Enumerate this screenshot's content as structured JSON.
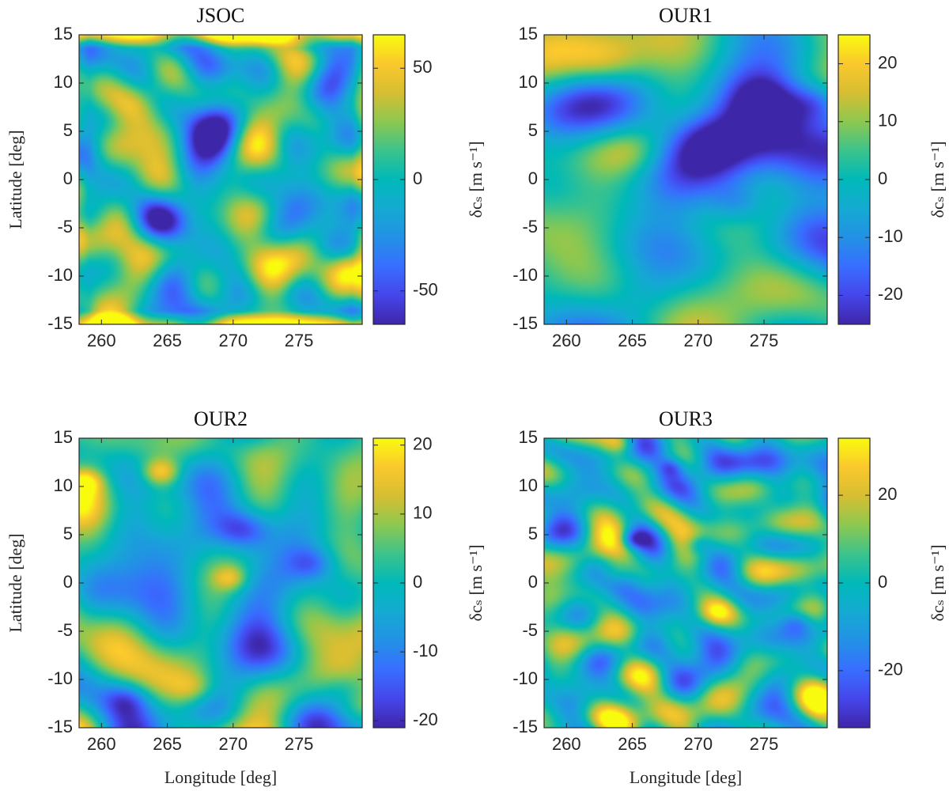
{
  "chart_data": [
    {
      "type": "heatmap",
      "title": "JSOC",
      "xlabel": "",
      "ylabel": "Latitude [deg]",
      "colorbar_label": "δcₛ [m s⁻¹]",
      "xlim": [
        258.3,
        279.8
      ],
      "ylim": [
        -15,
        15
      ],
      "xticks": [
        "260",
        "265",
        "270",
        "275"
      ],
      "yticks": [
        "15",
        "10",
        "5",
        "0",
        "-5",
        "-10",
        "-15"
      ],
      "clim": [
        -65,
        65
      ],
      "cbar_ticks": [
        "50",
        "0",
        "-50"
      ],
      "cbar_tick_values": [
        50,
        0,
        -50
      ],
      "pattern": "fine-scale noise, strong positive band at latitude ±14–15 edges",
      "seed": 11,
      "features": [
        {
          "lon": 262.0,
          "lat": 8.0,
          "amp": 0.5,
          "r": 1.5
        },
        {
          "lon": 273.5,
          "lat": -8.0,
          "amp": 0.6,
          "r": 1.8
        },
        {
          "lon": 259.0,
          "lat": -6.0,
          "amp": 0.6,
          "r": 1.6
        },
        {
          "lon": 279.0,
          "lat": -9.0,
          "amp": 0.7,
          "r": 1.2
        },
        {
          "lon": 265.0,
          "lat": -9.0,
          "amp": -0.55,
          "r": 1.5
        },
        {
          "lon": 270.0,
          "lat": 2.0,
          "amp": -0.4,
          "r": 2.0
        }
      ]
    },
    {
      "type": "heatmap",
      "title": "OUR1",
      "xlabel": "",
      "ylabel": "",
      "colorbar_label": "δcₛ [m s⁻¹]",
      "xlim": [
        258.3,
        279.8
      ],
      "ylim": [
        -15,
        15
      ],
      "xticks": [
        "260",
        "265",
        "270",
        "275"
      ],
      "yticks": [
        "15",
        "10",
        "5",
        "0",
        "-5",
        "-10",
        "-15"
      ],
      "clim": [
        -25,
        25
      ],
      "cbar_ticks": [
        "20",
        "10",
        "0",
        "-10",
        "-20"
      ],
      "cbar_tick_values": [
        20,
        10,
        0,
        -10,
        -20
      ],
      "pattern": "smooth; positive on west side (lat ~3, lon 259–266), strongly negative in NE (lon 268–279, lat 2–10)",
      "seed": 23,
      "features": [
        {
          "lon": 262.0,
          "lat": 3.5,
          "amp": 0.55,
          "r": 2.5
        },
        {
          "lon": 265.0,
          "lat": 3.0,
          "amp": 0.45,
          "r": 1.8
        },
        {
          "lon": 263.0,
          "lat": 12.0,
          "amp": 0.35,
          "r": 1.8
        },
        {
          "lon": 271.0,
          "lat": 4.0,
          "amp": -0.8,
          "r": 2.2
        },
        {
          "lon": 276.0,
          "lat": 5.0,
          "amp": -0.9,
          "r": 2.8
        },
        {
          "lon": 275.0,
          "lat": 8.0,
          "amp": -0.75,
          "r": 2.0
        },
        {
          "lon": 279.0,
          "lat": 8.0,
          "amp": -0.7,
          "r": 1.5
        },
        {
          "lon": 273.0,
          "lat": -2.5,
          "amp": -0.5,
          "r": 1.5
        },
        {
          "lon": 266.0,
          "lat": -12.0,
          "amp": -0.35,
          "r": 2.0
        }
      ]
    },
    {
      "type": "heatmap",
      "title": "OUR2",
      "xlabel": "Longitude [deg]",
      "ylabel": "Latitude [deg]",
      "colorbar_label": "δcₛ [m s⁻¹]",
      "xlim": [
        258.3,
        279.8
      ],
      "ylim": [
        -15,
        15
      ],
      "xticks": [
        "260",
        "265",
        "270",
        "275"
      ],
      "yticks": [
        "15",
        "10",
        "5",
        "0",
        "-5",
        "-10",
        "-15"
      ],
      "clim": [
        -21,
        21
      ],
      "cbar_ticks": [
        "20",
        "10",
        "0",
        "-10",
        "-20"
      ],
      "cbar_tick_values": [
        20,
        10,
        0,
        -10,
        -20
      ],
      "pattern": "medium-scale blobs; bright spot near (264.5, 11.5); negative area near (270.5, 5)",
      "seed": 37,
      "features": [
        {
          "lon": 264.5,
          "lat": 11.5,
          "amp": 0.85,
          "r": 1.0
        },
        {
          "lon": 258.8,
          "lat": 10.5,
          "amp": 0.6,
          "r": 0.9
        },
        {
          "lon": 269.8,
          "lat": 0.5,
          "amp": 0.55,
          "r": 0.9
        },
        {
          "lon": 267.0,
          "lat": -11.0,
          "amp": 0.5,
          "r": 1.2
        },
        {
          "lon": 270.8,
          "lat": 5.5,
          "amp": -0.85,
          "r": 1.5
        },
        {
          "lon": 276.0,
          "lat": 2.0,
          "amp": -0.6,
          "r": 1.3
        },
        {
          "lon": 278.5,
          "lat": -11.0,
          "amp": -0.5,
          "r": 1.3
        },
        {
          "lon": 262.0,
          "lat": -12.0,
          "amp": -0.45,
          "r": 1.2
        }
      ]
    },
    {
      "type": "heatmap",
      "title": "OUR3",
      "xlabel": "Longitude [deg]",
      "ylabel": "",
      "colorbar_label": "δcₛ [m s⁻¹]",
      "xlim": [
        258.3,
        279.8
      ],
      "ylim": [
        -15,
        15
      ],
      "xticks": [
        "260",
        "265",
        "270",
        "275"
      ],
      "yticks": [
        "15",
        "10",
        "5",
        "0",
        "-5",
        "-10",
        "-15"
      ],
      "clim": [
        -33,
        33
      ],
      "cbar_ticks": [
        "20",
        "0",
        "-20"
      ],
      "cbar_tick_values": [
        20,
        0,
        -20
      ],
      "pattern": "fine-scale blobs, balanced positive and negative",
      "seed": 53,
      "features": [
        {
          "lon": 264.0,
          "lat": 14.5,
          "amp": 0.55,
          "r": 0.8
        },
        {
          "lon": 271.5,
          "lat": -3.0,
          "amp": 0.6,
          "r": 0.9
        },
        {
          "lon": 263.5,
          "lat": 1.0,
          "amp": 0.5,
          "r": 0.9
        },
        {
          "lon": 265.0,
          "lat": 4.5,
          "amp": -0.7,
          "r": 0.7
        },
        {
          "lon": 270.0,
          "lat": 4.0,
          "amp": -0.6,
          "r": 0.8
        },
        {
          "lon": 277.5,
          "lat": -4.0,
          "amp": -0.55,
          "r": 0.9
        },
        {
          "lon": 268.0,
          "lat": 12.0,
          "amp": -0.55,
          "r": 0.7
        }
      ]
    }
  ]
}
